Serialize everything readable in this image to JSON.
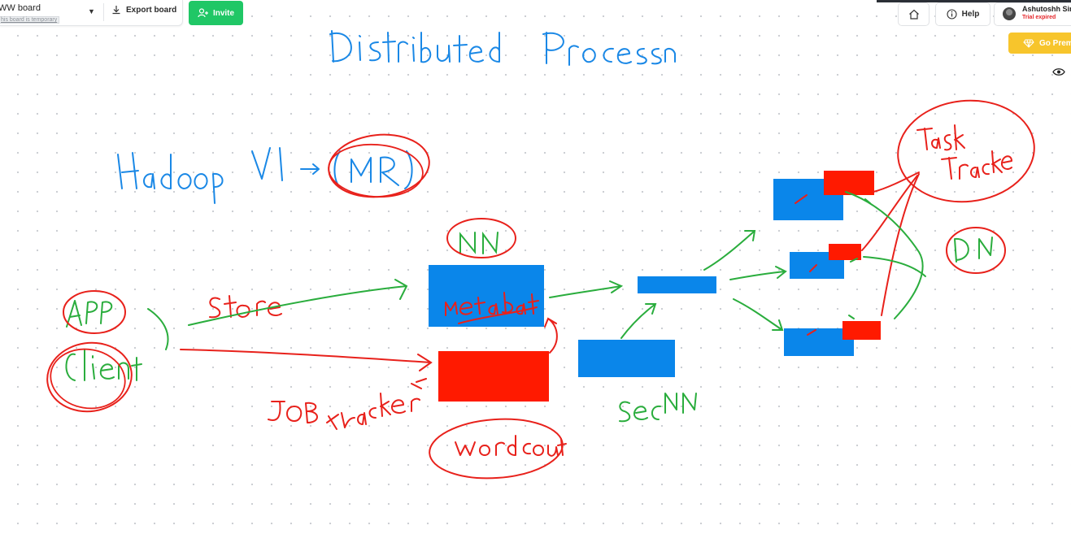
{
  "toolbar": {
    "board_name": "WW board",
    "board_note": "his board is temporary",
    "export_label": "Export board",
    "invite_label": "Invite",
    "help_label": "Help",
    "user_name": "Ashutoshh Sing",
    "user_status": "Trial expired",
    "premium_label": "Go Premi"
  },
  "colors": {
    "accent_green": "#20c766",
    "premium_yellow": "#f7c52c",
    "ink_blue": "#1a88e6",
    "ink_red": "#e8211b",
    "ink_green": "#2aad3d",
    "box_blue": "#0a86ea",
    "box_red": "#ff1a00"
  },
  "icons": {
    "export": "download-icon",
    "invite": "add-user-icon",
    "home": "home-icon",
    "help": "info-icon",
    "premium": "diamond-icon",
    "view": "eye-icon"
  }
}
